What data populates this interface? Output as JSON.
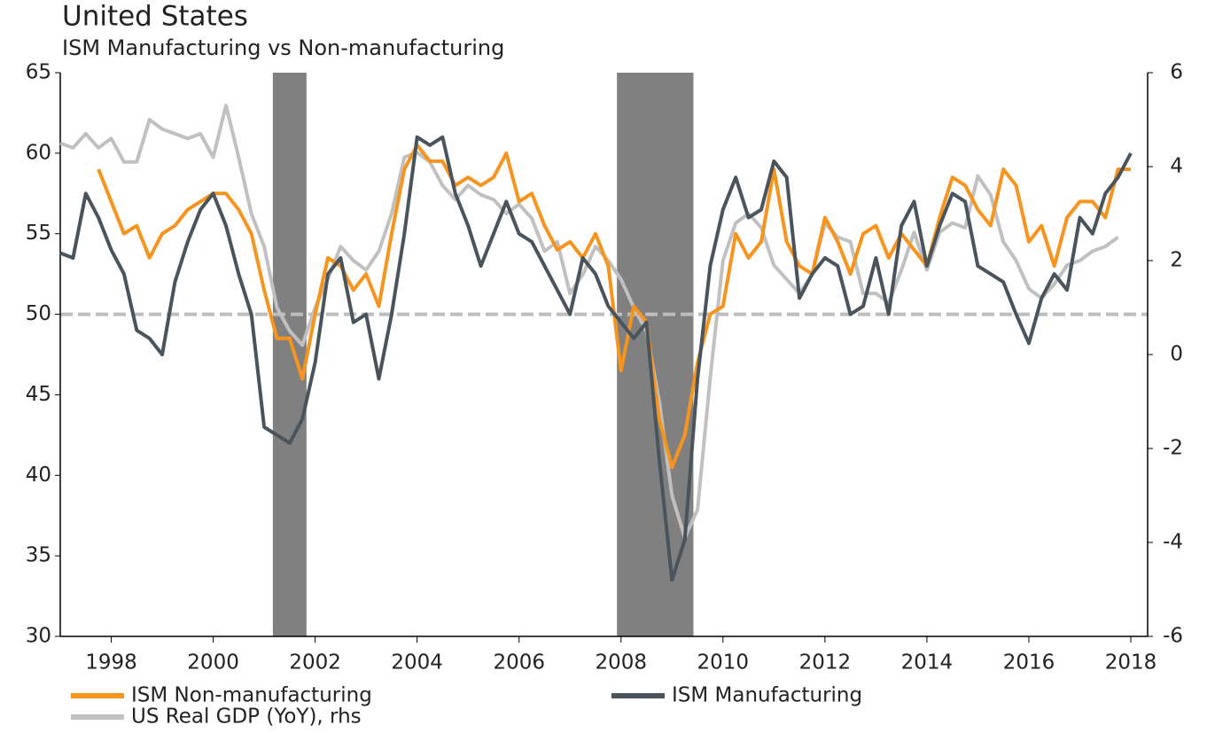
{
  "chart_data": {
    "type": "line",
    "title": "United States",
    "subtitle": "ISM Manufacturing vs Non-manufacturing",
    "x": [
      1997.0,
      1997.25,
      1997.5,
      1997.75,
      1998.0,
      1998.25,
      1998.5,
      1998.75,
      1999.0,
      1999.25,
      1999.5,
      1999.75,
      2000.0,
      2000.25,
      2000.5,
      2000.75,
      2001.0,
      2001.25,
      2001.5,
      2001.75,
      2002.0,
      2002.25,
      2002.5,
      2002.75,
      2003.0,
      2003.25,
      2003.5,
      2003.75,
      2004.0,
      2004.25,
      2004.5,
      2004.75,
      2005.0,
      2005.25,
      2005.5,
      2005.75,
      2006.0,
      2006.25,
      2006.5,
      2006.75,
      2007.0,
      2007.25,
      2007.5,
      2007.75,
      2008.0,
      2008.25,
      2008.5,
      2008.75,
      2009.0,
      2009.25,
      2009.5,
      2009.75,
      2010.0,
      2010.25,
      2010.5,
      2010.75,
      2011.0,
      2011.25,
      2011.5,
      2011.75,
      2012.0,
      2012.25,
      2012.5,
      2012.75,
      2013.0,
      2013.25,
      2013.5,
      2013.75,
      2014.0,
      2014.25,
      2014.5,
      2014.75,
      2015.0,
      2015.25,
      2015.5,
      2015.75,
      2016.0,
      2016.25,
      2016.5,
      2016.75,
      2017.0,
      2017.25,
      2017.5,
      2017.75,
      2018.0
    ],
    "series": [
      {
        "name": "ISM Non-manufacturing",
        "color": "#f7941d",
        "axis": "y",
        "values": [
          null,
          null,
          null,
          59.0,
          57.0,
          55.0,
          55.5,
          53.5,
          55.0,
          55.5,
          56.5,
          57.0,
          57.5,
          57.5,
          56.5,
          55.0,
          51.5,
          48.5,
          48.5,
          46.0,
          50.0,
          53.5,
          53.0,
          51.5,
          52.5,
          50.5,
          55.0,
          59.0,
          60.5,
          59.5,
          59.5,
          58.0,
          58.5,
          58.0,
          58.5,
          60.0,
          57.0,
          57.5,
          55.5,
          54.0,
          54.5,
          53.5,
          55.0,
          53.0,
          46.5,
          50.5,
          49.5,
          43.5,
          40.5,
          42.5,
          47.0,
          50.0,
          50.5,
          55.0,
          53.5,
          54.5,
          59.0,
          54.5,
          53.0,
          52.5,
          56.0,
          54.5,
          52.5,
          55.0,
          55.5,
          53.5,
          55.0,
          54.0,
          53.0,
          56.0,
          58.5,
          58.0,
          56.5,
          55.5,
          59.0,
          58.0,
          54.5,
          55.5,
          53.0,
          56.0,
          57.0,
          57.0,
          56.0,
          59.0,
          59.0
        ]
      },
      {
        "name": "ISM Manufacturing",
        "color": "#4a545c",
        "axis": "y",
        "values": [
          53.8,
          53.5,
          57.5,
          56.0,
          54.0,
          52.5,
          49.0,
          48.5,
          47.5,
          52.0,
          54.5,
          56.5,
          57.5,
          55.5,
          52.5,
          50.0,
          43.0,
          42.5,
          42.0,
          43.5,
          47.0,
          52.5,
          53.5,
          49.5,
          50.0,
          46.0,
          50.0,
          55.0,
          61.0,
          60.5,
          61.0,
          57.5,
          55.5,
          53.0,
          55.0,
          57.0,
          55.0,
          54.5,
          53.0,
          51.5,
          50.0,
          53.5,
          52.5,
          50.5,
          49.5,
          48.5,
          49.5,
          41.0,
          33.5,
          36.0,
          46.0,
          53.0,
          56.5,
          58.5,
          56.0,
          56.5,
          59.5,
          58.5,
          51.0,
          52.5,
          53.5,
          53.0,
          50.0,
          50.5,
          53.5,
          50.0,
          55.5,
          57.0,
          53.0,
          55.5,
          57.5,
          57.0,
          53.0,
          52.5,
          52.0,
          50.0,
          48.2,
          51.0,
          52.5,
          51.5,
          56.0,
          55.0,
          57.5,
          58.5,
          60.0
        ]
      },
      {
        "name": "US Real GDP (YoY), rhs",
        "color": "#c0c0c0",
        "axis": "y2",
        "values": [
          4.5,
          4.4,
          4.7,
          4.4,
          4.6,
          4.1,
          4.1,
          5.0,
          4.8,
          4.7,
          4.6,
          4.7,
          4.2,
          5.3,
          4.2,
          3.0,
          2.3,
          1.0,
          0.5,
          0.2,
          1.0,
          1.6,
          2.3,
          2.0,
          1.8,
          2.2,
          3.0,
          4.2,
          4.3,
          4.1,
          3.6,
          3.3,
          3.6,
          3.4,
          3.3,
          3.0,
          3.2,
          2.9,
          2.2,
          2.4,
          1.3,
          1.7,
          2.3,
          2.0,
          1.6,
          1.0,
          0.5,
          -1.0,
          -3.0,
          -3.9,
          -3.3,
          -0.5,
          2.0,
          2.8,
          3.0,
          2.7,
          1.9,
          1.6,
          1.3,
          1.7,
          2.8,
          2.5,
          2.4,
          1.3,
          1.3,
          1.1,
          1.8,
          2.6,
          1.8,
          2.6,
          2.8,
          2.7,
          3.8,
          3.4,
          2.4,
          2.0,
          1.4,
          1.2,
          1.5,
          1.9,
          2.0,
          2.2,
          2.3,
          2.5,
          null
        ]
      }
    ],
    "xlim": [
      1997.0,
      2018.33
    ],
    "xticks": [
      1998,
      2000,
      2002,
      2004,
      2006,
      2008,
      2010,
      2012,
      2014,
      2016,
      2018
    ],
    "ylim": [
      30,
      65
    ],
    "yticks": [
      30,
      35,
      40,
      45,
      50,
      55,
      60,
      65
    ],
    "y2lim": [
      -6,
      6
    ],
    "y2ticks": [
      -6,
      -4,
      -2,
      0,
      2,
      4,
      6
    ],
    "reference_line": 50,
    "reference_color": "#bdbdbd",
    "shaded_periods": [
      [
        2001.17,
        2001.83
      ],
      [
        2007.92,
        2009.42
      ]
    ],
    "shade_color": "#808080"
  }
}
